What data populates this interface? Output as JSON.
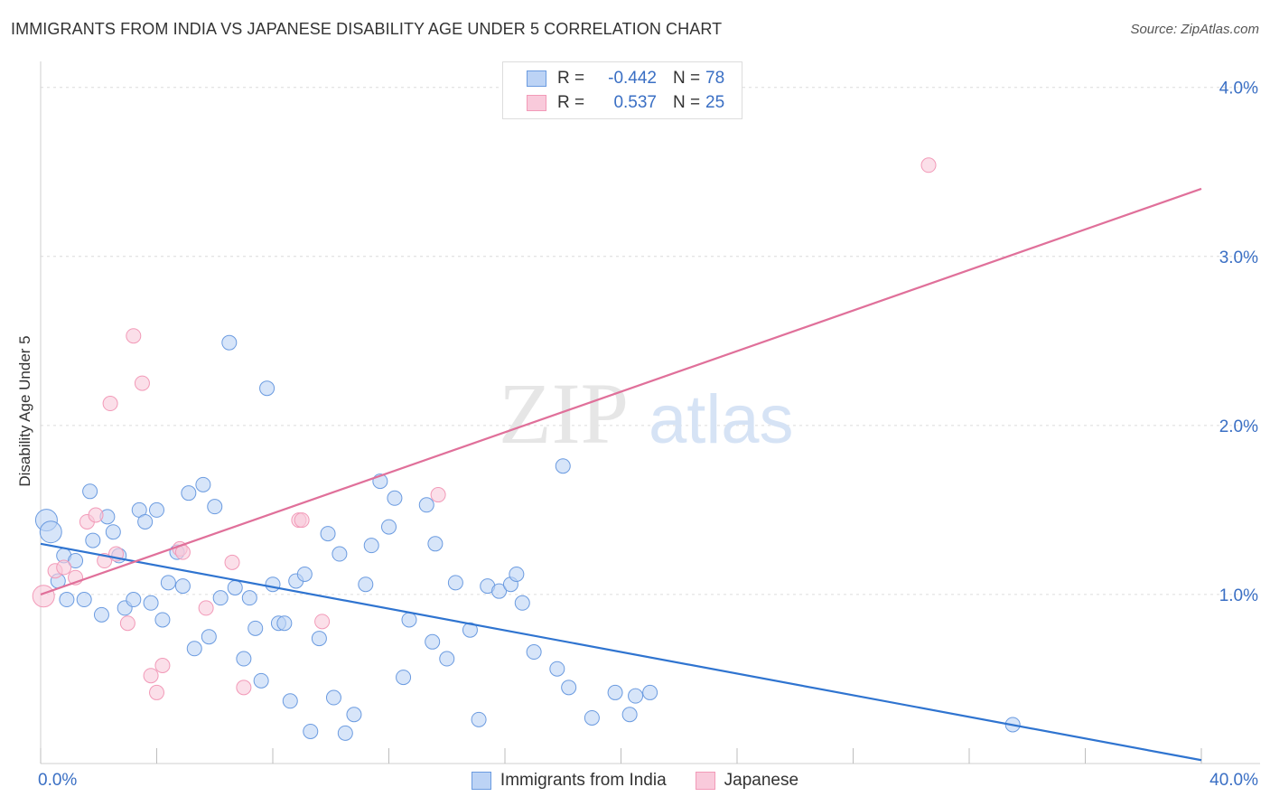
{
  "title": "IMMIGRANTS FROM INDIA VS JAPANESE DISABILITY AGE UNDER 5 CORRELATION CHART",
  "source": "Source: ZipAtlas.com",
  "colors": {
    "india": "#6b9be0",
    "india_fill": "#bcd3f5",
    "india_line": "#2f74d0",
    "japanese": "#f29ab8",
    "japanese_fill": "#f9cadb",
    "japanese_line": "#e0709a",
    "tick_label": "#3a6fc4"
  },
  "stats": [
    {
      "r_label": "R =",
      "r": "-0.442",
      "n_label": "N =",
      "n": "78"
    },
    {
      "r_label": "R =",
      "r": "0.537",
      "n_label": "N =",
      "n": "25"
    }
  ],
  "legend": [
    "Immigrants from India",
    "Japanese"
  ],
  "watermark": {
    "zip": "ZIP",
    "atlas": "atlas"
  },
  "chart_data": {
    "type": "scatter",
    "xlabel": "",
    "ylabel": "Disability Age Under 5",
    "xlim": [
      0,
      40
    ],
    "ylim": [
      0,
      4.1
    ],
    "x_tick_labels": [
      {
        "value": 0,
        "label": "0.0%"
      },
      {
        "value": 40,
        "label": "40.0%"
      }
    ],
    "y_tick_labels": [
      {
        "value": 1,
        "label": "1.0%"
      },
      {
        "value": 2,
        "label": "2.0%"
      },
      {
        "value": 3,
        "label": "3.0%"
      },
      {
        "value": 4,
        "label": "4.0%"
      }
    ],
    "grid": true,
    "series": [
      {
        "name": "Immigrants from India",
        "trend": {
          "x": [
            0,
            40
          ],
          "y": [
            1.3,
            0.02
          ]
        },
        "points": [
          [
            0.2,
            1.44
          ],
          [
            0.35,
            1.37
          ],
          [
            0.6,
            1.08
          ],
          [
            0.8,
            1.23
          ],
          [
            0.9,
            0.97
          ],
          [
            1.2,
            1.2
          ],
          [
            1.5,
            0.97
          ],
          [
            1.7,
            1.61
          ],
          [
            1.8,
            1.32
          ],
          [
            2.1,
            0.88
          ],
          [
            2.3,
            1.46
          ],
          [
            2.5,
            1.37
          ],
          [
            2.7,
            1.23
          ],
          [
            2.9,
            0.92
          ],
          [
            3.2,
            0.97
          ],
          [
            3.4,
            1.5
          ],
          [
            3.6,
            1.43
          ],
          [
            3.8,
            0.95
          ],
          [
            4.0,
            1.5
          ],
          [
            4.2,
            0.85
          ],
          [
            4.4,
            1.07
          ],
          [
            4.7,
            1.25
          ],
          [
            4.9,
            1.05
          ],
          [
            5.1,
            1.6
          ],
          [
            5.3,
            0.68
          ],
          [
            5.6,
            1.65
          ],
          [
            5.8,
            0.75
          ],
          [
            6.0,
            1.52
          ],
          [
            6.2,
            0.98
          ],
          [
            6.5,
            2.49
          ],
          [
            6.7,
            1.04
          ],
          [
            7.0,
            0.62
          ],
          [
            7.2,
            0.98
          ],
          [
            7.4,
            0.8
          ],
          [
            7.6,
            0.49
          ],
          [
            7.8,
            2.22
          ],
          [
            8.0,
            1.06
          ],
          [
            8.2,
            0.83
          ],
          [
            8.4,
            0.83
          ],
          [
            8.6,
            0.37
          ],
          [
            8.8,
            1.08
          ],
          [
            9.1,
            1.12
          ],
          [
            9.3,
            0.19
          ],
          [
            9.6,
            0.74
          ],
          [
            9.9,
            1.36
          ],
          [
            10.1,
            0.39
          ],
          [
            10.3,
            1.24
          ],
          [
            10.5,
            0.18
          ],
          [
            10.8,
            0.29
          ],
          [
            11.2,
            1.06
          ],
          [
            11.4,
            1.29
          ],
          [
            11.7,
            1.67
          ],
          [
            12.0,
            1.4
          ],
          [
            12.2,
            1.57
          ],
          [
            12.5,
            0.51
          ],
          [
            12.7,
            0.85
          ],
          [
            13.3,
            1.53
          ],
          [
            13.5,
            0.72
          ],
          [
            13.6,
            1.3
          ],
          [
            14.0,
            0.62
          ],
          [
            14.3,
            1.07
          ],
          [
            14.8,
            0.79
          ],
          [
            15.1,
            0.26
          ],
          [
            15.4,
            1.05
          ],
          [
            15.8,
            1.02
          ],
          [
            16.2,
            1.06
          ],
          [
            16.4,
            1.12
          ],
          [
            16.6,
            0.95
          ],
          [
            17.0,
            0.66
          ],
          [
            17.8,
            0.56
          ],
          [
            18.0,
            1.76
          ],
          [
            18.2,
            0.45
          ],
          [
            19.0,
            0.27
          ],
          [
            19.8,
            0.42
          ],
          [
            20.3,
            0.29
          ],
          [
            20.5,
            0.4
          ],
          [
            21.0,
            0.42
          ],
          [
            33.5,
            0.23
          ]
        ]
      },
      {
        "name": "Japanese",
        "trend": {
          "x": [
            0,
            40
          ],
          "y": [
            1.0,
            3.4
          ]
        },
        "points": [
          [
            0.1,
            0.99
          ],
          [
            0.5,
            1.14
          ],
          [
            0.8,
            1.16
          ],
          [
            1.2,
            1.1
          ],
          [
            1.6,
            1.43
          ],
          [
            1.9,
            1.47
          ],
          [
            2.2,
            1.2
          ],
          [
            2.4,
            2.13
          ],
          [
            2.6,
            1.24
          ],
          [
            3.0,
            0.83
          ],
          [
            3.2,
            2.53
          ],
          [
            3.5,
            2.25
          ],
          [
            3.8,
            0.52
          ],
          [
            4.0,
            0.42
          ],
          [
            4.2,
            0.58
          ],
          [
            4.8,
            1.27
          ],
          [
            4.9,
            1.25
          ],
          [
            5.7,
            0.92
          ],
          [
            6.6,
            1.19
          ],
          [
            7.0,
            0.45
          ],
          [
            8.9,
            1.44
          ],
          [
            9.0,
            1.44
          ],
          [
            9.7,
            0.84
          ],
          [
            13.7,
            1.59
          ],
          [
            30.6,
            3.54
          ]
        ]
      }
    ]
  }
}
